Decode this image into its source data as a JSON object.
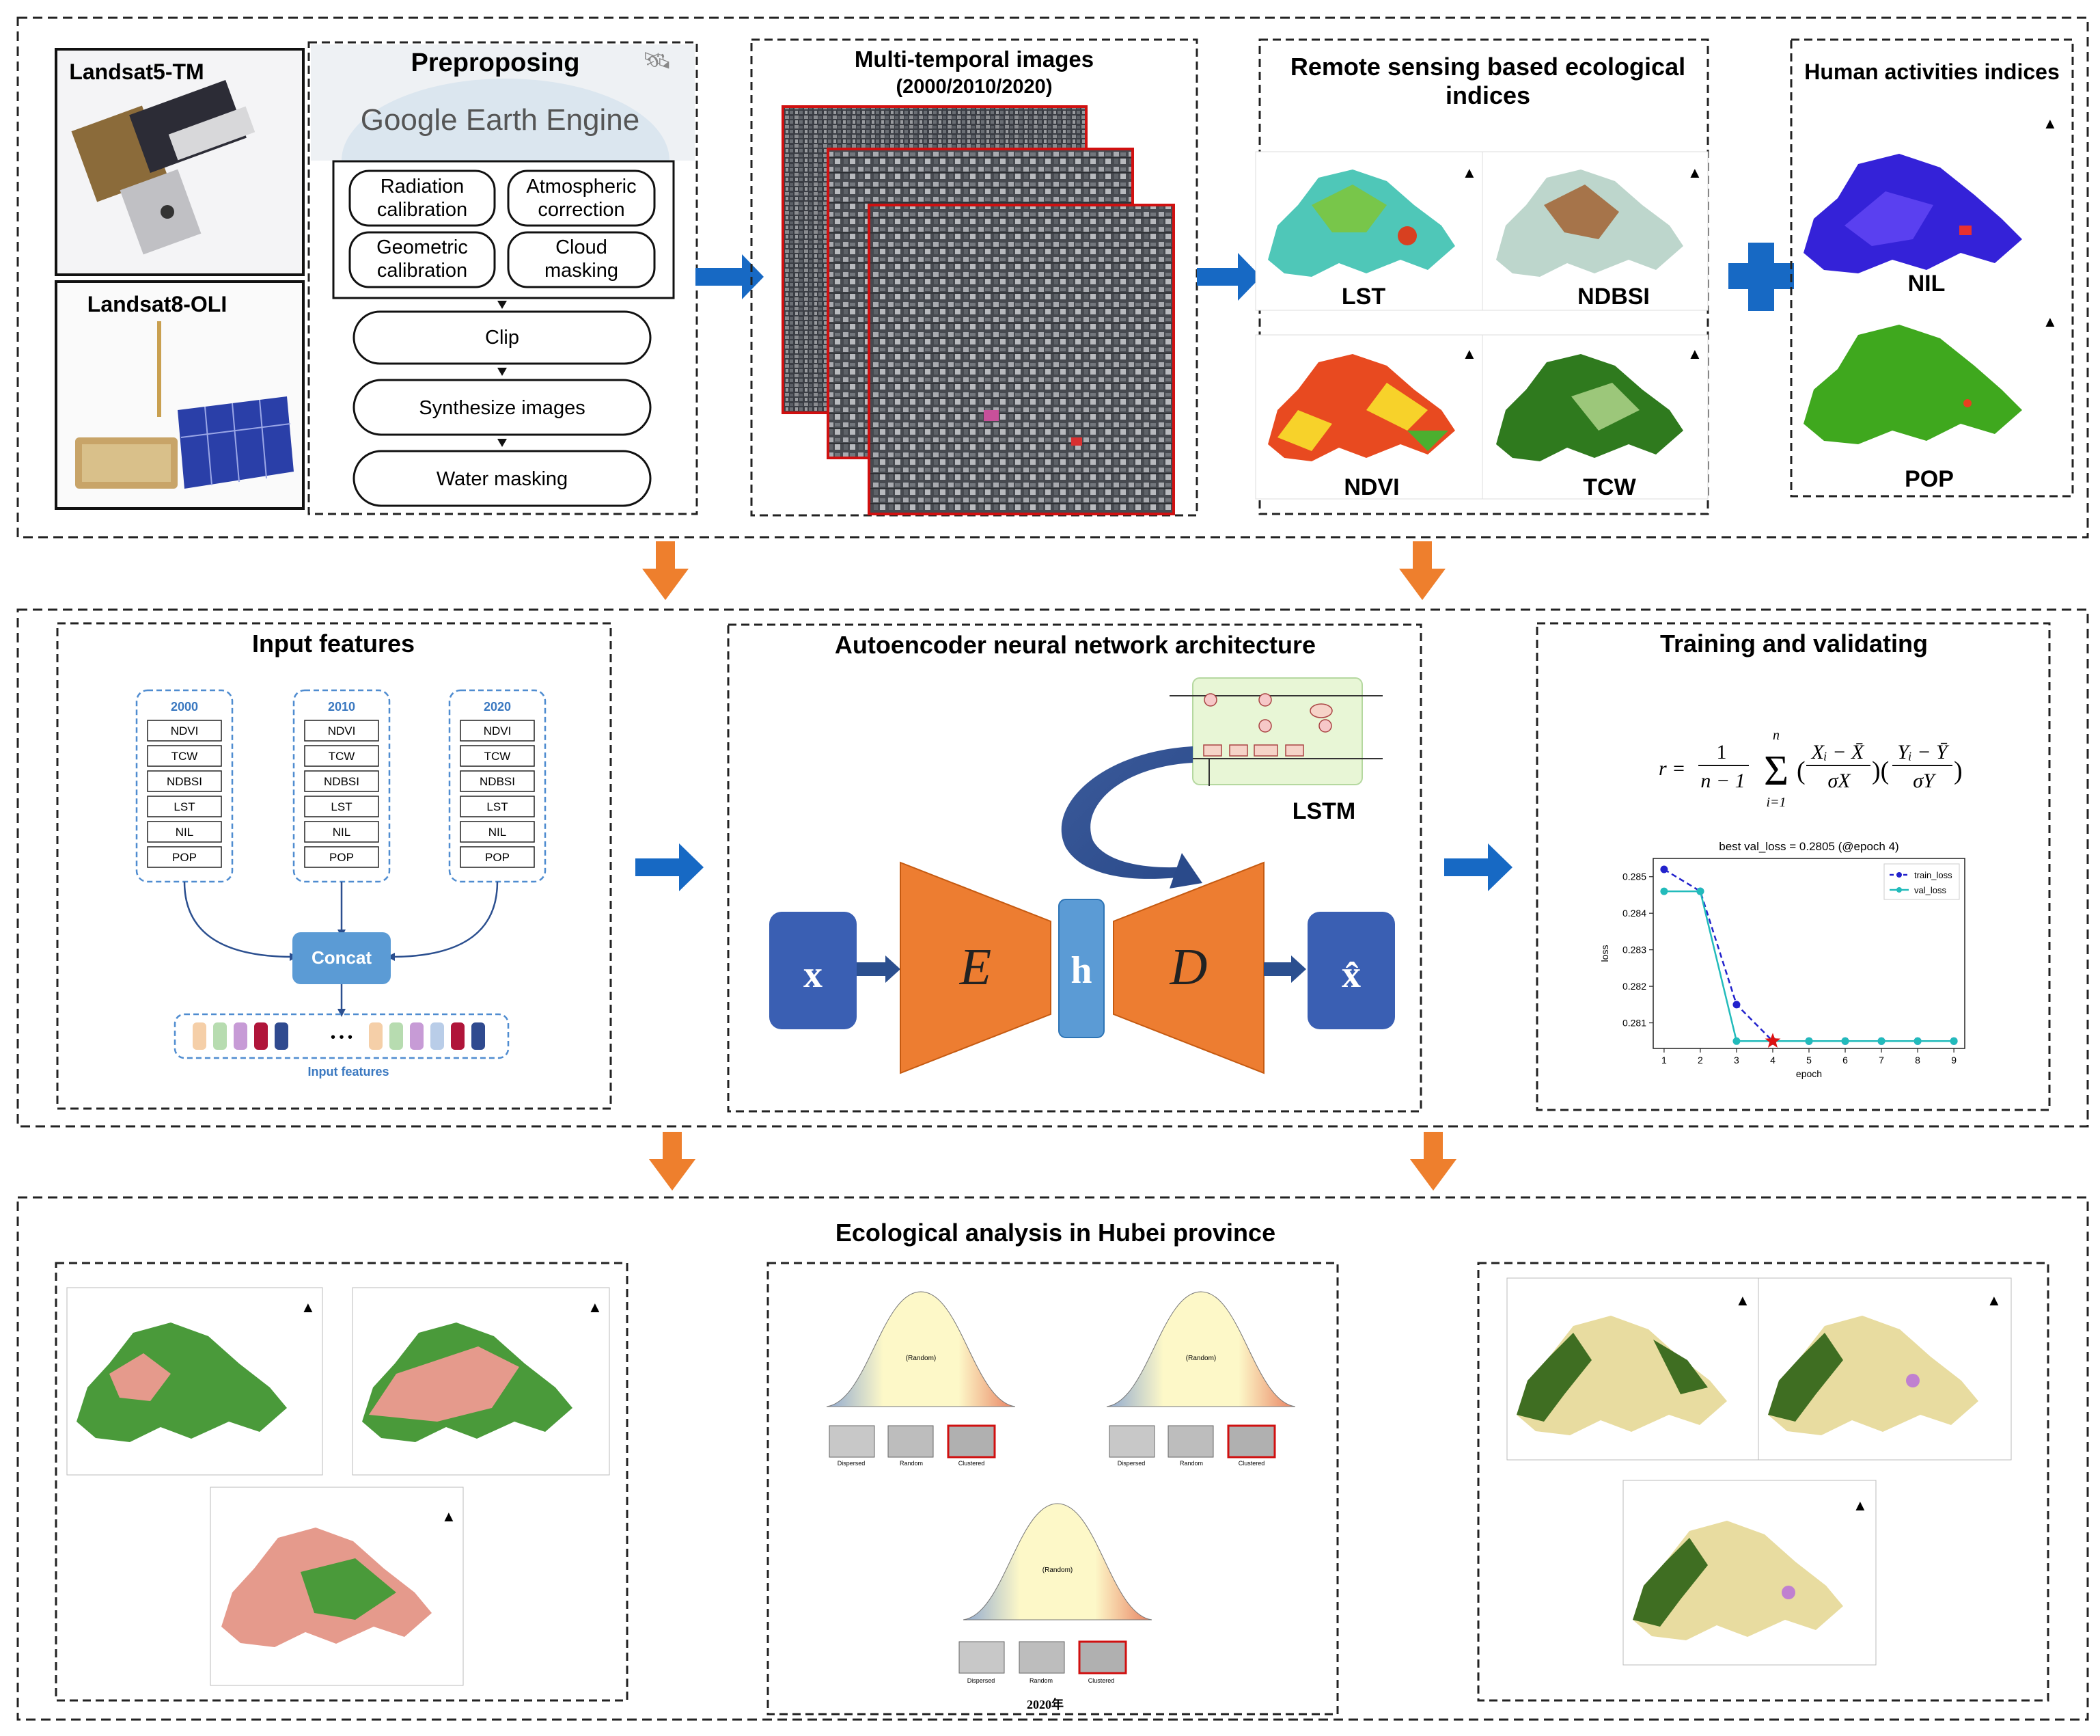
{
  "section1": {
    "satellites": [
      "Landsat5-TM",
      "Landsat8-OLI"
    ],
    "preprocessing": {
      "title": "Preproposing",
      "gee_logo": "Google Earth Engine",
      "steps_grid": [
        [
          "Radiation",
          "calibration"
        ],
        [
          "Atmospheric",
          "correction"
        ],
        [
          "Geometric",
          "calibration"
        ],
        [
          "Cloud",
          "masking"
        ]
      ],
      "steps_flow": [
        "Clip",
        "Synthesize images",
        "Water masking"
      ]
    },
    "multitemporal": {
      "title": "Multi-temporal images",
      "subtitle": "(2000/2010/2020)"
    },
    "rs_indices": {
      "title_line1": "Remote sensing based ecological",
      "title_line2": "indices",
      "maps": [
        "LST",
        "NDBSI",
        "NDVI",
        "TCW"
      ]
    },
    "human": {
      "title": "Human activities indices",
      "maps": [
        "NIL",
        "POP"
      ]
    }
  },
  "section2": {
    "input_features": {
      "title": "Input features",
      "years": [
        "2000",
        "2010",
        "2020"
      ],
      "features": [
        "NDVI",
        "TCW",
        "NDBSI",
        "LST",
        "NIL",
        "POP"
      ],
      "concat": "Concat",
      "bottom_label": "Input features",
      "dots": "• • •"
    },
    "autoencoder": {
      "title": "Autoencoder neural network architecture",
      "x": "x",
      "encoder": "E",
      "hidden": "h",
      "decoder": "D",
      "x_hat": "x̂",
      "lstm": "LSTM"
    },
    "training": {
      "title": "Training and validating",
      "formula": "r = 1/(n−1) Σ (Xᵢ − X̄)/σX · (Yᵢ − Ȳ)/σY"
    }
  },
  "chart_data": {
    "type": "line",
    "title": "best val_loss = 0.2805 (@epoch 4)",
    "xlabel": "epoch",
    "ylabel": "loss",
    "x": [
      1,
      2,
      3,
      4,
      5,
      6,
      7,
      8,
      9
    ],
    "xlim": [
      0.7,
      9.3
    ],
    "ylim": [
      0.2803,
      0.2855
    ],
    "yticks": [
      0.281,
      0.282,
      0.283,
      0.284,
      0.285
    ],
    "series": [
      {
        "name": "train_loss",
        "color": "#2222cc",
        "dashed": true,
        "values": [
          0.2852,
          0.2846,
          0.2815,
          0.2805,
          0.2805,
          0.2805,
          0.2805,
          0.2805,
          0.2805
        ]
      },
      {
        "name": "val_loss",
        "color": "#22bbbb",
        "dashed": false,
        "values": [
          0.2846,
          0.2846,
          0.2805,
          0.2805,
          0.2805,
          0.2805,
          0.2805,
          0.2805,
          0.2805
        ]
      }
    ],
    "best_marker": {
      "x": 4,
      "y": 0.2805,
      "color": "#dd1111"
    },
    "legend": "top-right",
    "grid": false
  },
  "section3": {
    "title": "Ecological analysis in Hubei province",
    "distribution_labels": [
      "Dispersed",
      "Random",
      "Clustered"
    ],
    "curve_center": "(Random)",
    "caption": "2020年"
  },
  "colors": {
    "arrow_blue": "#1769c4",
    "arrow_orange": "#ee7f2d",
    "encoder_orange": "#ed7d31",
    "node_blue": "#3a5fb3",
    "hidden_blue": "#5b9bd5",
    "concat_blue": "#5b9bd5"
  }
}
